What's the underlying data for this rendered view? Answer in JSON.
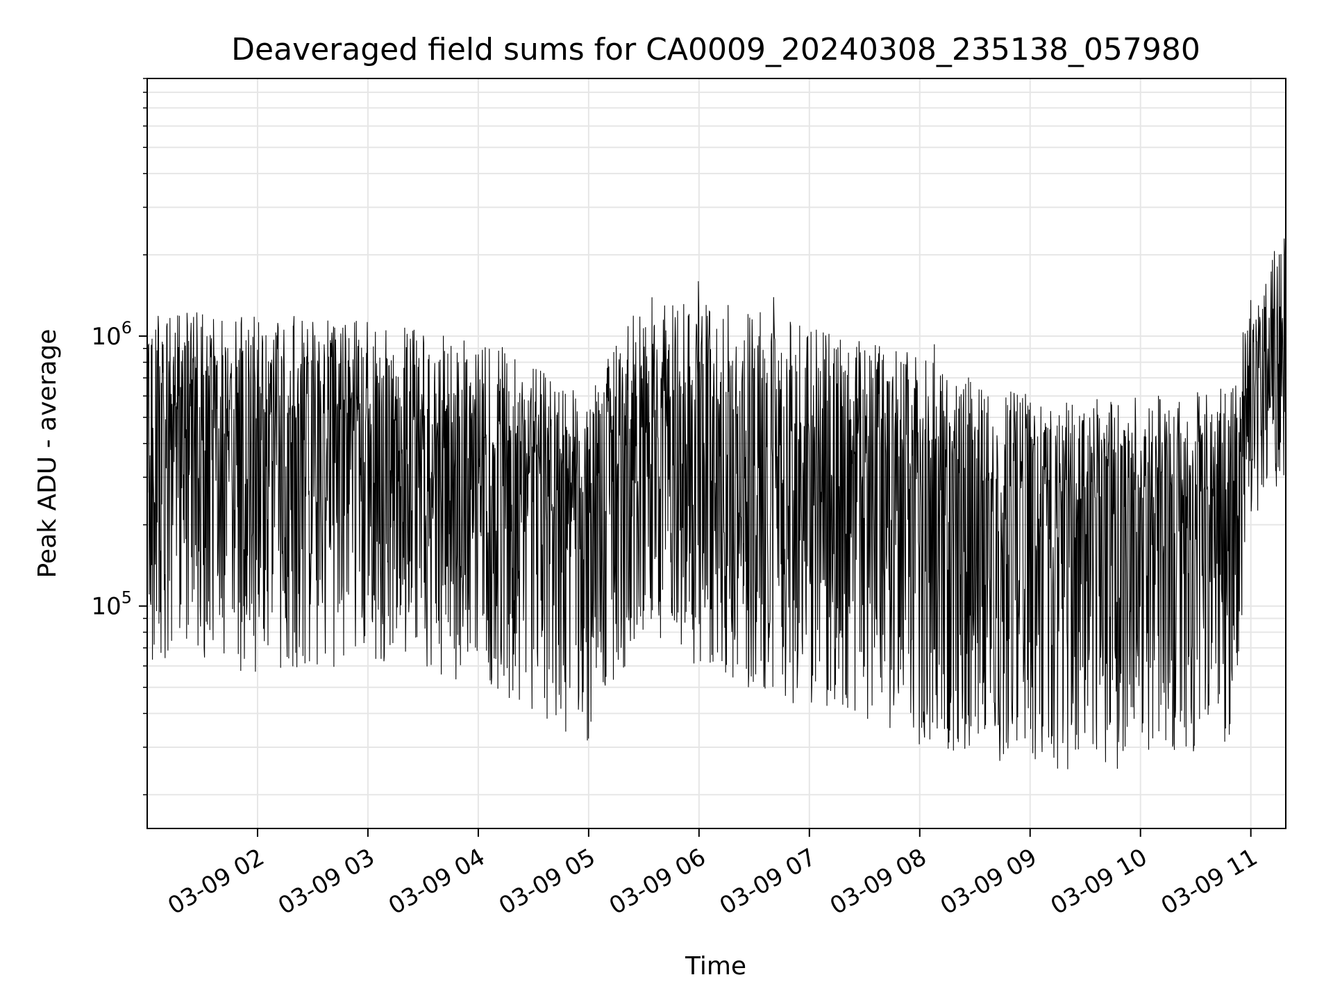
{
  "chart_data": {
    "type": "line",
    "title": "Deaveraged field sums for CA0009_20240308_235138_057980",
    "xlabel": "Time",
    "ylabel": "Peak ADU - average",
    "yscale": "log",
    "ylim": [
      15000,
      9000000
    ],
    "xlim": [
      "2024-03-09 01:00",
      "2024-03-09 11:19"
    ],
    "grid": true,
    "line_color": "#000000",
    "grid_color": "#e6e6e6",
    "x_ticks": [
      {
        "label": "03-09 02",
        "value": "2024-03-09 02:00"
      },
      {
        "label": "03-09 03",
        "value": "2024-03-09 03:00"
      },
      {
        "label": "03-09 04",
        "value": "2024-03-09 04:00"
      },
      {
        "label": "03-09 05",
        "value": "2024-03-09 05:00"
      },
      {
        "label": "03-09 06",
        "value": "2024-03-09 06:00"
      },
      {
        "label": "03-09 07",
        "value": "2024-03-09 07:00"
      },
      {
        "label": "03-09 08",
        "value": "2024-03-09 08:00"
      },
      {
        "label": "03-09 09",
        "value": "2024-03-09 09:00"
      },
      {
        "label": "03-09 10",
        "value": "2024-03-09 10:00"
      },
      {
        "label": "03-09 11",
        "value": "2024-03-09 11:00"
      }
    ],
    "y_ticks": [
      {
        "base": "10",
        "exp": "5",
        "value": 100000
      },
      {
        "base": "10",
        "exp": "6",
        "value": 1000000
      }
    ],
    "series": [
      {
        "envelope": {
          "time": [
            "2024-03-09 01:00",
            "2024-03-09 01:30",
            "2024-03-09 02:00",
            "2024-03-09 02:30",
            "2024-03-09 03:00",
            "2024-03-09 03:30",
            "2024-03-09 04:00",
            "2024-03-09 04:30",
            "2024-03-09 05:00",
            "2024-03-09 05:15",
            "2024-03-09 05:30",
            "2024-03-09 06:00",
            "2024-03-09 06:30",
            "2024-03-09 07:00",
            "2024-03-09 07:30",
            "2024-03-09 08:00",
            "2024-03-09 08:30",
            "2024-03-09 09:00",
            "2024-03-09 09:30",
            "2024-03-09 10:00",
            "2024-03-09 10:30",
            "2024-03-09 10:50",
            "2024-03-09 11:00",
            "2024-03-09 11:19"
          ],
          "upper": [
            1200000,
            1250000,
            1200000,
            1200000,
            1150000,
            1050000,
            950000,
            800000,
            580000,
            1000000,
            1400000,
            1400000,
            1250000,
            1100000,
            950000,
            850000,
            700000,
            620000,
            600000,
            600000,
            620000,
            650000,
            1500000,
            2500000
          ],
          "lower": [
            60000,
            60000,
            55000,
            58000,
            60000,
            55000,
            50000,
            40000,
            30000,
            55000,
            70000,
            60000,
            45000,
            40000,
            38000,
            30000,
            28000,
            25000,
            24000,
            25000,
            28000,
            30000,
            200000,
            300000
          ]
        }
      }
    ]
  }
}
